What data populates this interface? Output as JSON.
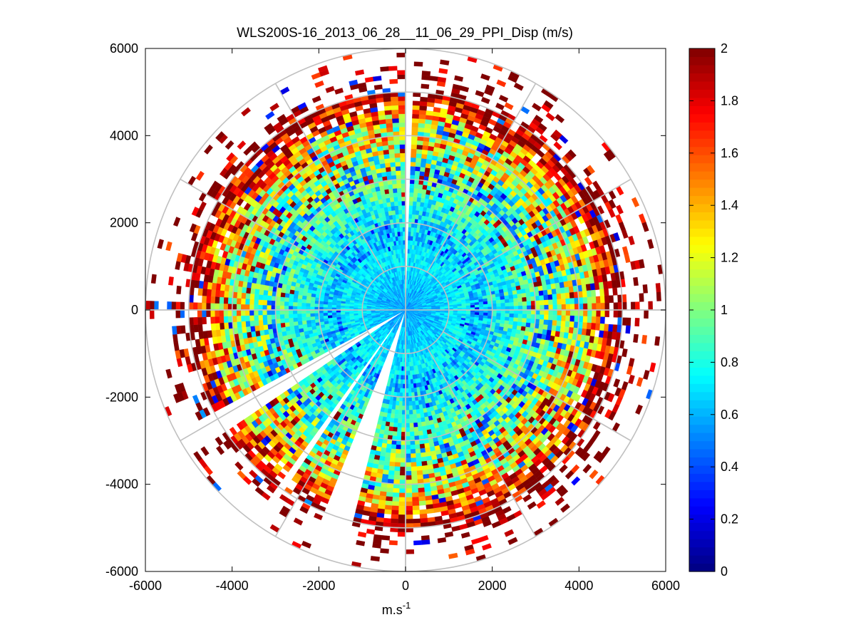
{
  "chart_data": {
    "type": "heatmap",
    "subtype": "polar-ppi",
    "title": "WLS200S-16_2013_06_28__11_06_29_PPI_Disp (m/s)",
    "xlabel": "m.s",
    "xlabel_sup": "-1",
    "ylabel": "",
    "xlim": [
      -6000,
      6000
    ],
    "ylim": [
      -6000,
      6000
    ],
    "xticks": [
      "-6000",
      "-4000",
      "-2000",
      "0",
      "2000",
      "4000",
      "6000"
    ],
    "yticks": [
      "6000",
      "4000",
      "2000",
      "0",
      "-2000",
      "-4000",
      "-6000"
    ],
    "xtick_values": [
      -6000,
      -4000,
      -2000,
      0,
      2000,
      4000,
      6000
    ],
    "ytick_values": [
      6000,
      4000,
      2000,
      0,
      -2000,
      -4000,
      -6000
    ],
    "range_ring_step": 1000,
    "max_range": 6000,
    "spoke_step_deg": 30,
    "grid": true,
    "colorbar": {
      "colormap": "jet",
      "min": 0,
      "max": 2,
      "ticks": [
        "0",
        "0.2",
        "0.4",
        "0.6",
        "0.8",
        "1",
        "1.2",
        "1.4",
        "1.6",
        "1.8",
        "2"
      ],
      "tick_values": [
        0,
        0.2,
        0.4,
        0.6,
        0.8,
        1,
        1.2,
        1.4,
        1.6,
        1.8,
        2
      ],
      "levels": 64
    },
    "field_description": {
      "gate_length_m": 100,
      "azimuth_step_deg": 2,
      "range_profile": [
        {
          "range_m": [
            0,
            1500
          ],
          "dispersion_ms": [
            0.55,
            0.75
          ]
        },
        {
          "range_m": [
            1500,
            3000
          ],
          "dispersion_ms": [
            0.6,
            0.95
          ]
        },
        {
          "range_m": [
            3000,
            4000
          ],
          "dispersion_ms": [
            0.7,
            1.3
          ]
        },
        {
          "range_m": [
            4000,
            5000
          ],
          "dispersion_ms": [
            1.0,
            2.0
          ]
        },
        {
          "range_m": [
            5000,
            6000
          ],
          "dispersion_ms": [
            2.0,
            2.0
          ]
        }
      ],
      "missing_sectors_bearing_deg": [
        [
          0,
          3
        ],
        [
          195,
          202
        ],
        [
          214,
          216
        ],
        [
          237,
          243
        ]
      ]
    }
  }
}
